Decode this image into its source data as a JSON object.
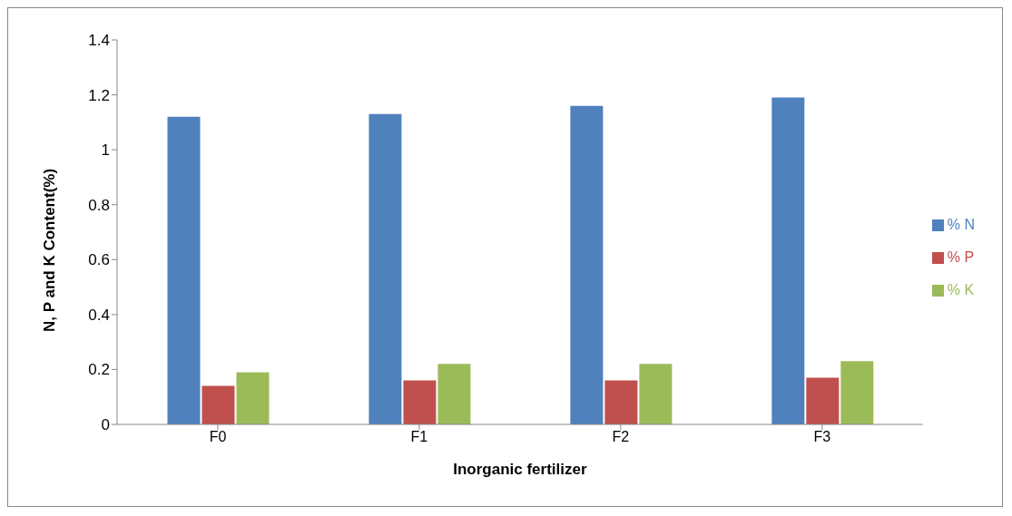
{
  "chart_data": {
    "type": "bar",
    "xlabel": "Inorganic fertilizer",
    "ylabel": "N, P and K Content(%)",
    "categories": [
      "F0",
      "F1",
      "F2",
      "F3"
    ],
    "series": [
      {
        "name": "% N",
        "color": "#4f81bd",
        "values": [
          1.12,
          1.13,
          1.16,
          1.19
        ]
      },
      {
        "name": "% P",
        "color": "#c0504d",
        "values": [
          0.14,
          0.16,
          0.16,
          0.17
        ]
      },
      {
        "name": "% K",
        "color": "#9bbb59",
        "values": [
          0.19,
          0.22,
          0.22,
          0.23
        ]
      }
    ],
    "ylim": [
      0,
      1.4
    ],
    "yticks": [
      0,
      0.2,
      0.4,
      0.6,
      0.8,
      1,
      1.2,
      1.4
    ],
    "grid": false,
    "legend": "right"
  }
}
